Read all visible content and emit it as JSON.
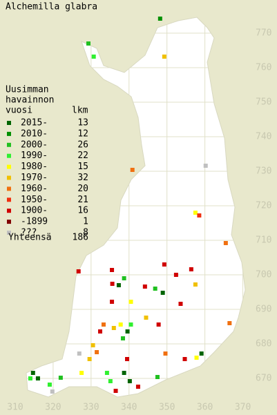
{
  "title": "Alchemilla glabra",
  "xlim": [
    306,
    379
  ],
  "ylim": [
    659.4,
    779.6
  ],
  "xticks": [
    310,
    320,
    330,
    340,
    350,
    360,
    370
  ],
  "yticks": [
    670,
    680,
    690,
    700,
    710,
    720,
    730,
    740,
    750,
    760,
    770
  ],
  "legend": {
    "heading": [
      "Uusimman",
      "havainnon",
      "vuosi"
    ],
    "count_heading": "lkm",
    "rows": [
      {
        "label": "2015-",
        "count": 13,
        "color": "#006400"
      },
      {
        "label": "2010-",
        "count": 12,
        "color": "#009000"
      },
      {
        "label": "2000-",
        "count": 26,
        "color": "#20c020"
      },
      {
        "label": "1990-",
        "count": 22,
        "color": "#30f030"
      },
      {
        "label": "1980-",
        "count": 15,
        "color": "#ffff00"
      },
      {
        "label": "1970-",
        "count": 32,
        "color": "#f0c000"
      },
      {
        "label": "1960-",
        "count": 20,
        "color": "#f07010"
      },
      {
        "label": "1950-",
        "count": 21,
        "color": "#f03010"
      },
      {
        "label": "1900-",
        "count": 16,
        "color": "#d00000"
      },
      {
        "label": "-1899",
        "count": 1,
        "color": "#800000"
      },
      {
        "label": "???",
        "count": 8,
        "color": "#c0c0c0"
      }
    ],
    "total_label": "Yhteensä",
    "total": 186
  },
  "points": [
    {
      "x": 348.2,
      "y": 774.2,
      "color": "#009000"
    },
    {
      "x": 329.3,
      "y": 767.0,
      "color": "#20c020"
    },
    {
      "x": 330.7,
      "y": 763.2,
      "color": "#30f030"
    },
    {
      "x": 349.3,
      "y": 763.2,
      "color": "#f0c000"
    },
    {
      "x": 340.9,
      "y": 730.4,
      "color": "#f07010"
    },
    {
      "x": 360.2,
      "y": 731.6,
      "color": "#c0c0c0"
    },
    {
      "x": 357.5,
      "y": 718.0,
      "color": "#ffff00"
    },
    {
      "x": 358.5,
      "y": 717.2,
      "color": "#f03010"
    },
    {
      "x": 365.5,
      "y": 709.2,
      "color": "#f07010"
    },
    {
      "x": 335.5,
      "y": 701.4,
      "color": "#d00000"
    },
    {
      "x": 338.7,
      "y": 699.0,
      "color": "#20c020"
    },
    {
      "x": 337.3,
      "y": 697.0,
      "color": "#006400"
    },
    {
      "x": 335.6,
      "y": 697.4,
      "color": "#d00000"
    },
    {
      "x": 349.3,
      "y": 703.0,
      "color": "#d00000"
    },
    {
      "x": 356.4,
      "y": 701.6,
      "color": "#d00000"
    },
    {
      "x": 352.4,
      "y": 700.0,
      "color": "#d00000"
    },
    {
      "x": 357.5,
      "y": 697.2,
      "color": "#f0c000"
    },
    {
      "x": 344.2,
      "y": 696.6,
      "color": "#d00000"
    },
    {
      "x": 348.9,
      "y": 694.8,
      "color": "#006400"
    },
    {
      "x": 346.9,
      "y": 696.0,
      "color": "#20c020"
    },
    {
      "x": 335.5,
      "y": 692.2,
      "color": "#d00000"
    },
    {
      "x": 340.5,
      "y": 692.2,
      "color": "#ffff00"
    },
    {
      "x": 353.6,
      "y": 691.6,
      "color": "#d00000"
    },
    {
      "x": 326.7,
      "y": 701.0,
      "color": "#d00000"
    },
    {
      "x": 338.4,
      "y": 681.6,
      "color": "#20c020"
    },
    {
      "x": 339.6,
      "y": 683.6,
      "color": "#006400"
    },
    {
      "x": 340.5,
      "y": 685.6,
      "color": "#30f030"
    },
    {
      "x": 337.8,
      "y": 685.6,
      "color": "#ffff00"
    },
    {
      "x": 336.0,
      "y": 684.6,
      "color": "#f0c000"
    },
    {
      "x": 333.3,
      "y": 685.6,
      "color": "#f07010"
    },
    {
      "x": 330.5,
      "y": 679.6,
      "color": "#f0c000"
    },
    {
      "x": 331.5,
      "y": 677.6,
      "color": "#f07010"
    },
    {
      "x": 329.6,
      "y": 675.6,
      "color": "#f0c000"
    },
    {
      "x": 332.4,
      "y": 683.6,
      "color": "#d00000"
    },
    {
      "x": 344.5,
      "y": 687.6,
      "color": "#f0c000"
    },
    {
      "x": 347.8,
      "y": 685.6,
      "color": "#d00000"
    },
    {
      "x": 349.6,
      "y": 677.2,
      "color": "#f07010"
    },
    {
      "x": 354.7,
      "y": 675.6,
      "color": "#d00000"
    },
    {
      "x": 357.8,
      "y": 676.0,
      "color": "#ffff00"
    },
    {
      "x": 359.1,
      "y": 677.2,
      "color": "#006400"
    },
    {
      "x": 366.5,
      "y": 686.0,
      "color": "#f07010"
    },
    {
      "x": 339.5,
      "y": 675.6,
      "color": "#d00000"
    },
    {
      "x": 338.7,
      "y": 671.6,
      "color": "#006400"
    },
    {
      "x": 335.1,
      "y": 669.2,
      "color": "#30f030"
    },
    {
      "x": 342.4,
      "y": 667.6,
      "color": "#d00000"
    },
    {
      "x": 347.5,
      "y": 670.4,
      "color": "#20c020"
    },
    {
      "x": 326.9,
      "y": 677.2,
      "color": "#c0c0c0"
    },
    {
      "x": 327.5,
      "y": 671.6,
      "color": "#ffff00"
    },
    {
      "x": 314.7,
      "y": 671.6,
      "color": "#006400"
    },
    {
      "x": 316.0,
      "y": 670.0,
      "color": "#006400"
    },
    {
      "x": 314.0,
      "y": 670.0,
      "color": "#30f030"
    },
    {
      "x": 319.1,
      "y": 668.2,
      "color": "#30f030"
    },
    {
      "x": 322.0,
      "y": 670.2,
      "color": "#20c020"
    },
    {
      "x": 319.8,
      "y": 666.2,
      "color": "#c0c0c0"
    },
    {
      "x": 336.5,
      "y": 666.4,
      "color": "#d00000"
    },
    {
      "x": 340.2,
      "y": 669.2,
      "color": "#006400"
    },
    {
      "x": 334.2,
      "y": 671.6,
      "color": "#30f030"
    }
  ]
}
